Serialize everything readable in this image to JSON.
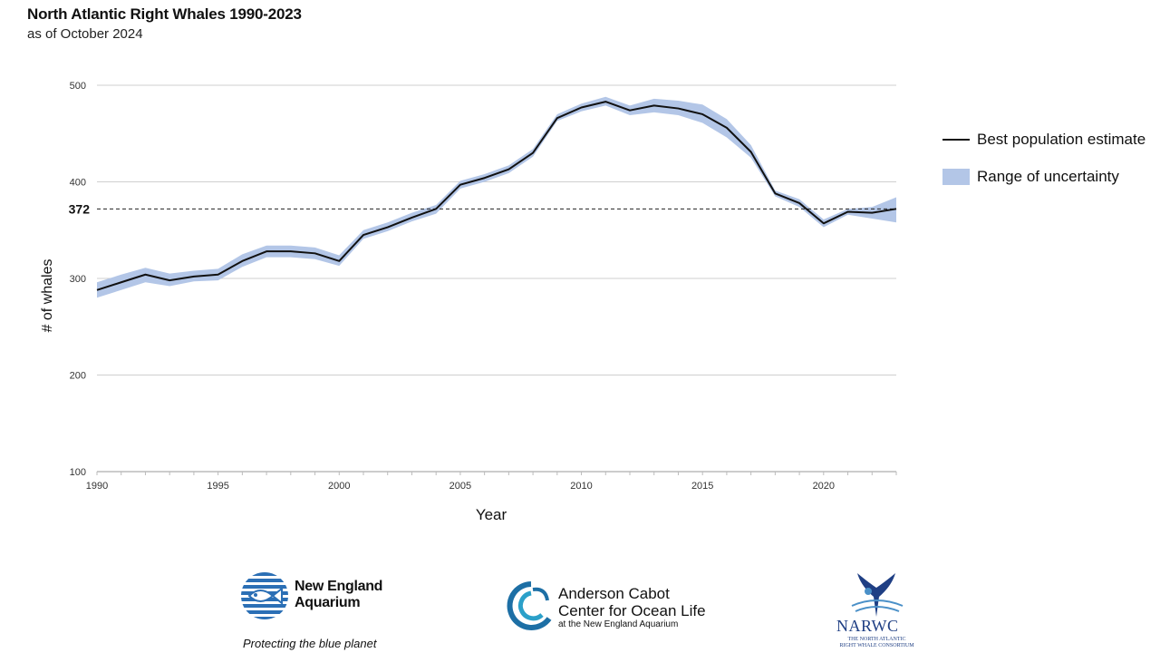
{
  "title": "North Atlantic Right Whales 1990-2023",
  "subtitle": "as of October 2024",
  "chart_data": {
    "type": "line",
    "title": "North Atlantic Right Whales 1990-2023",
    "subtitle": "as of October 2024",
    "xlabel": "Year",
    "ylabel": "# of whales",
    "xlim": [
      1990,
      2023
    ],
    "ylim": [
      100,
      500
    ],
    "x_ticks": [
      1990,
      1995,
      2000,
      2005,
      2010,
      2015,
      2020
    ],
    "y_ticks": [
      100,
      200,
      300,
      400,
      500
    ],
    "reference_line": {
      "value": 372,
      "label": "372",
      "style": "dashed"
    },
    "grid": true,
    "legend_position": "right",
    "colors": {
      "line": "#111111",
      "band": "#b3c6e7"
    },
    "series": [
      {
        "name": "Best population estimate",
        "x": [
          1990,
          1991,
          1992,
          1993,
          1994,
          1995,
          1996,
          1997,
          1998,
          1999,
          2000,
          2001,
          2002,
          2003,
          2004,
          2005,
          2006,
          2007,
          2008,
          2009,
          2010,
          2011,
          2012,
          2013,
          2014,
          2015,
          2016,
          2017,
          2018,
          2019,
          2020,
          2021,
          2022,
          2023
        ],
        "values": [
          288,
          296,
          304,
          298,
          302,
          304,
          318,
          328,
          328,
          326,
          318,
          345,
          353,
          363,
          372,
          397,
          404,
          413,
          430,
          466,
          477,
          483,
          474,
          479,
          476,
          470,
          456,
          431,
          388,
          378,
          357,
          369,
          368,
          372
        ]
      },
      {
        "name": "Range of uncertainty",
        "x": [
          1990,
          1991,
          1992,
          1993,
          1994,
          1995,
          1996,
          1997,
          1998,
          1999,
          2000,
          2001,
          2002,
          2003,
          2004,
          2005,
          2006,
          2007,
          2008,
          2009,
          2010,
          2011,
          2012,
          2013,
          2014,
          2015,
          2016,
          2017,
          2018,
          2019,
          2020,
          2021,
          2022,
          2023
        ],
        "lower": [
          280,
          288,
          296,
          292,
          297,
          298,
          312,
          322,
          322,
          320,
          313,
          341,
          349,
          359,
          367,
          393,
          400,
          409,
          426,
          463,
          473,
          479,
          469,
          472,
          469,
          461,
          446,
          425,
          385,
          374,
          353,
          366,
          362,
          358
        ],
        "upper": [
          296,
          304,
          311,
          305,
          308,
          310,
          325,
          334,
          334,
          332,
          324,
          350,
          358,
          368,
          376,
          401,
          408,
          417,
          434,
          470,
          481,
          488,
          479,
          486,
          484,
          480,
          465,
          438,
          391,
          382,
          361,
          372,
          374,
          384
        ]
      }
    ]
  },
  "legend": {
    "items": [
      {
        "label": "Best population estimate"
      },
      {
        "label": "Range of uncertainty"
      }
    ]
  },
  "footer": {
    "nea": {
      "line1": "New England",
      "line2": "Aquarium",
      "tagline": "Protecting the blue planet"
    },
    "acc": {
      "line1": "Anderson Cabot",
      "line2": "Center for Ocean Life",
      "line3": "at the New England Aquarium"
    },
    "narwc": {
      "name": "NARWC",
      "line1": "THE NORTH ATLANTIC",
      "line2": "RIGHT WHALE CONSORTIUM"
    }
  }
}
